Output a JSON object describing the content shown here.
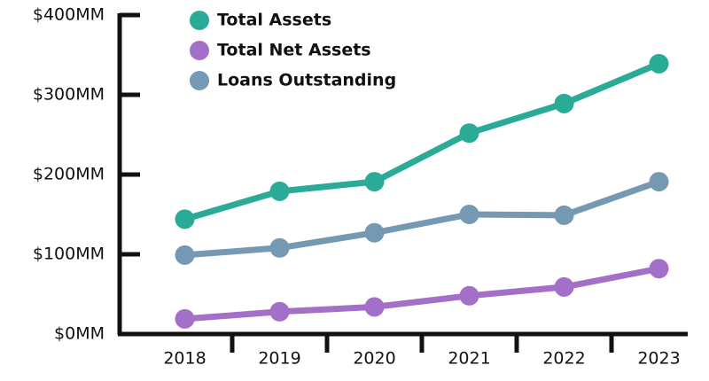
{
  "chart_data": {
    "type": "line",
    "categories": [
      "2018",
      "2019",
      "2020",
      "2021",
      "2022",
      "2023"
    ],
    "series": [
      {
        "name": "Total Assets",
        "color": "#2aab97",
        "values": [
          144,
          179,
          191,
          252,
          289,
          339
        ]
      },
      {
        "name": "Total Net Assets",
        "color": "#a46fc8",
        "values": [
          19,
          28,
          34,
          48,
          59,
          82
        ]
      },
      {
        "name": "Loans Outstanding",
        "color": "#7599b3",
        "values": [
          99,
          108,
          127,
          150,
          149,
          191
        ]
      }
    ],
    "ylim": [
      0,
      400
    ],
    "yticks": [
      {
        "value": 0,
        "label": "$0MM"
      },
      {
        "value": 100,
        "label": "$100MM"
      },
      {
        "value": 200,
        "label": "$200MM"
      },
      {
        "value": 300,
        "label": "$300MM"
      },
      {
        "value": 400,
        "label": "$400MM"
      }
    ],
    "grid": false
  }
}
